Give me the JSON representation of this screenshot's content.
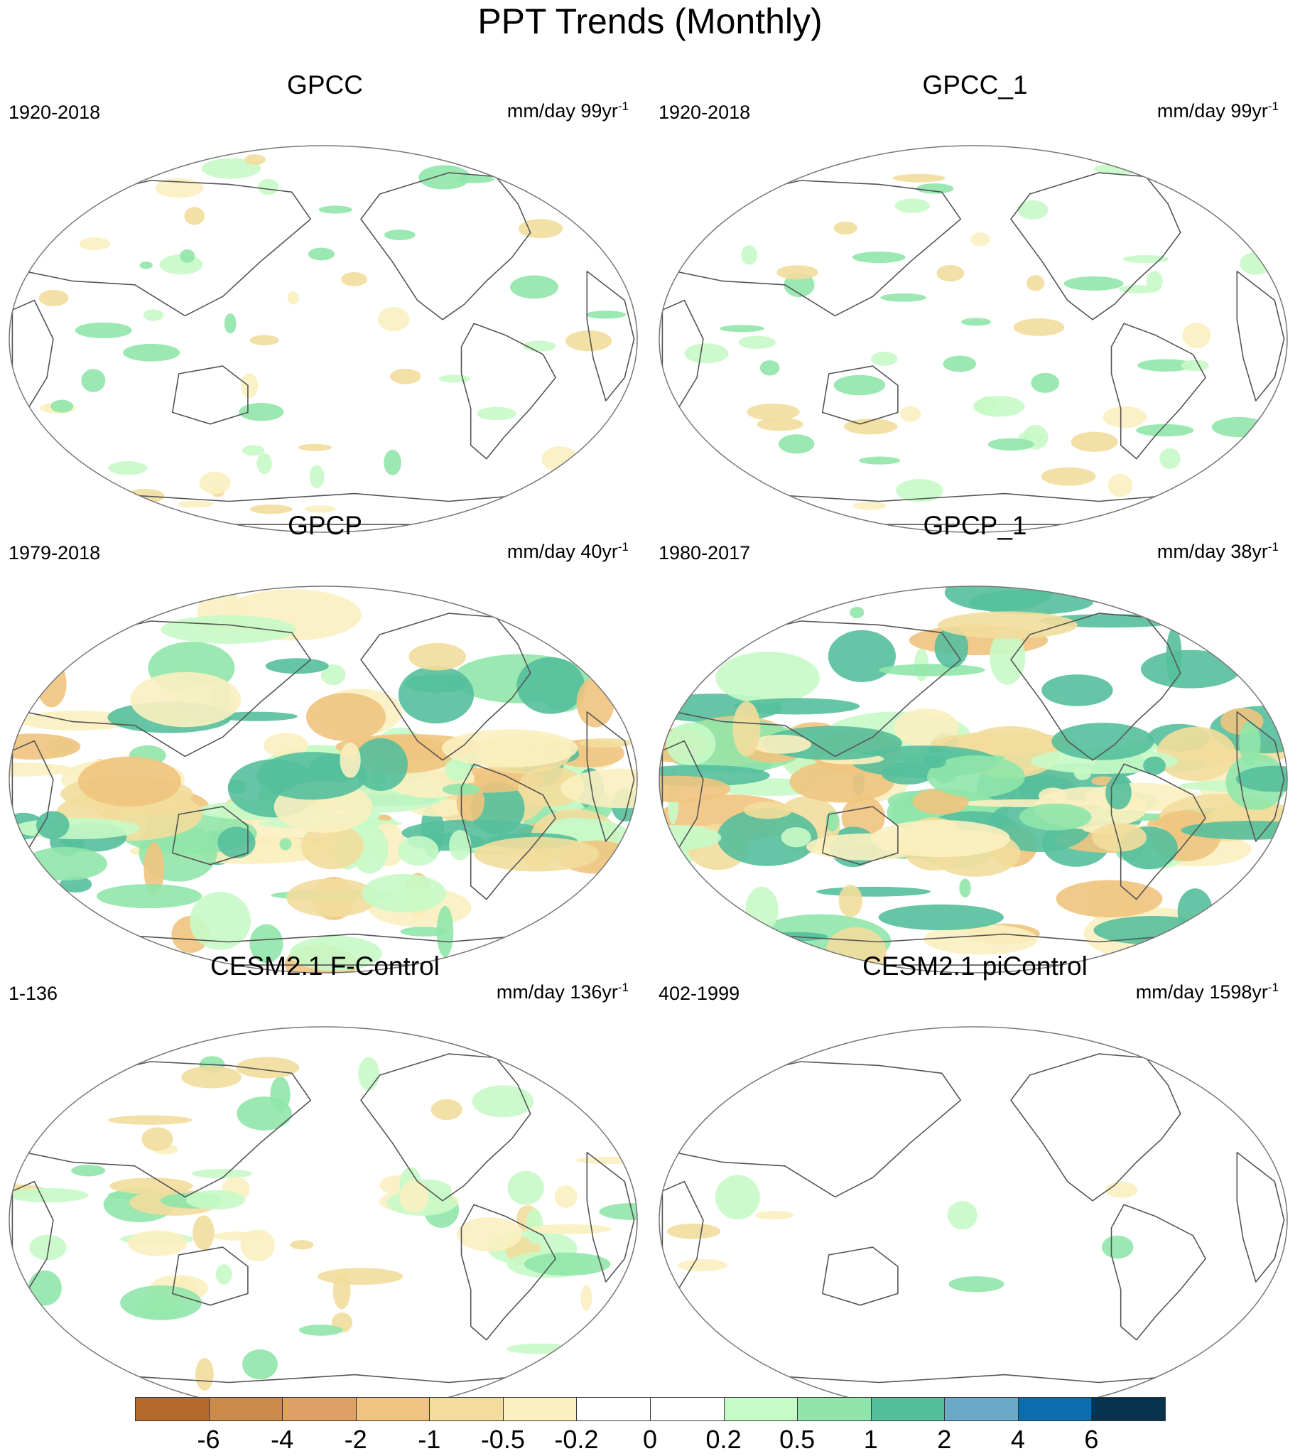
{
  "title": "PPT Trends (Monthly)",
  "panels": [
    {
      "title": "GPCC",
      "period": "1920-2018",
      "units": "mm/day 99yr",
      "units_sup": "-1",
      "pattern": "weak-land"
    },
    {
      "title": "GPCC_1",
      "period": "1920-2018",
      "units": "mm/day 99yr",
      "units_sup": "-1",
      "pattern": "weak-land"
    },
    {
      "title": "GPCP",
      "period": "1979-2018",
      "units": "mm/day 40yr",
      "units_sup": "-1",
      "pattern": "strong-global"
    },
    {
      "title": "GPCP_1",
      "period": "1980-2017",
      "units": "mm/day 38yr",
      "units_sup": "-1",
      "pattern": "strong-global"
    },
    {
      "title": "CESM2.1 F-Control",
      "period": "1-136",
      "units": "mm/day 136yr",
      "units_sup": "-1",
      "pattern": "moderate-tropics"
    },
    {
      "title": "CESM2.1 piControl",
      "period": "402-1999",
      "units": "mm/day 1598yr",
      "units_sup": "-1",
      "pattern": "minimal"
    }
  ],
  "colorbar": {
    "colors": [
      "#b5692a",
      "#cc8a4a",
      "#dea064",
      "#f0c47e",
      "#f2dd9c",
      "#fbf0c0",
      "#ffffff",
      "#ffffff",
      "#c6fac6",
      "#90e6aa",
      "#55bf9c",
      "#6aaac8",
      "#0a6eae",
      "#06344e"
    ],
    "labels": [
      "-6",
      "-4",
      "-2",
      "-1",
      "-0.5",
      "-0.2",
      "0",
      "0.2",
      "0.5",
      "1",
      "2",
      "4",
      "6"
    ]
  }
}
